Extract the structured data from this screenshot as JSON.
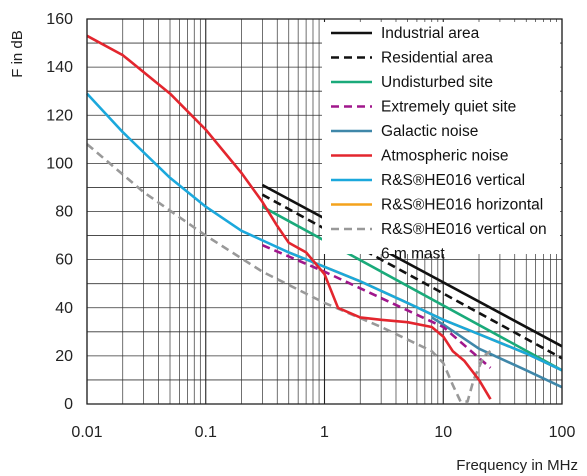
{
  "chart_data": {
    "type": "line",
    "xlabel": "Frequency in MHz",
    "ylabel": "F in dB",
    "x_scale": "log",
    "xlim": [
      0.01,
      100
    ],
    "ylim": [
      0,
      160
    ],
    "x_ticks": [
      {
        "value": 0.01,
        "label": "0.01"
      },
      {
        "value": 0.1,
        "label": "0.1"
      },
      {
        "value": 1,
        "label": "1"
      },
      {
        "value": 10,
        "label": "10"
      },
      {
        "value": 100,
        "label": "100"
      }
    ],
    "y_ticks": [
      {
        "value": 0,
        "label": "0"
      },
      {
        "value": 20,
        "label": "20"
      },
      {
        "value": 40,
        "label": "40"
      },
      {
        "value": 60,
        "label": "60"
      },
      {
        "value": 80,
        "label": "80"
      },
      {
        "value": 100,
        "label": "100"
      },
      {
        "value": 120,
        "label": "120"
      },
      {
        "value": 140,
        "label": "140"
      },
      {
        "value": 160,
        "label": "160"
      }
    ],
    "grid": true,
    "legend_position": "top-right",
    "series": [
      {
        "name": "Industrial area",
        "color": "#111111",
        "dash": "solid",
        "x": [
          0.3,
          100
        ],
        "y": [
          91,
          24
        ]
      },
      {
        "name": "Residential area",
        "color": "#111111",
        "dash": "dashed",
        "x": [
          0.3,
          100
        ],
        "y": [
          87,
          19
        ]
      },
      {
        "name": "Undisturbed site",
        "color": "#1aaa7a",
        "dash": "solid",
        "x": [
          0.3,
          100
        ],
        "y": [
          82,
          14
        ]
      },
      {
        "name": "Extremely quiet site",
        "color": "#a0178c",
        "dash": "dashed",
        "x": [
          0.3,
          1,
          3,
          10,
          25
        ],
        "y": [
          66,
          55,
          44,
          32,
          15
        ]
      },
      {
        "name": "Galactic noise",
        "color": "#3f87a9",
        "dash": "solid",
        "x": [
          8,
          10,
          20,
          50,
          100
        ],
        "y": [
          36,
          33,
          23,
          14,
          7
        ]
      },
      {
        "name": "Atmospheric noise",
        "color": "#e3262e",
        "dash": "solid",
        "x": [
          0.01,
          0.02,
          0.05,
          0.1,
          0.2,
          0.3,
          0.4,
          0.5,
          0.7,
          1,
          1.3,
          2,
          3,
          5,
          8,
          10,
          12,
          15,
          20,
          25
        ],
        "y": [
          153,
          145,
          129,
          114,
          96,
          84,
          74,
          67,
          63,
          54,
          40,
          36,
          35,
          34,
          32,
          28,
          22,
          18,
          10,
          2
        ]
      },
      {
        "name": "R&S®HE016 vertical",
        "color": "#1ba8dc",
        "dash": "solid",
        "x": [
          0.01,
          0.02,
          0.05,
          0.1,
          0.2,
          0.5,
          1,
          2,
          5,
          10,
          20,
          50,
          100
        ],
        "y": [
          129,
          113,
          94,
          82,
          72,
          63,
          57,
          51,
          42,
          35,
          29,
          21,
          14
        ]
      },
      {
        "name": "R&S®HE016 horizontal",
        "color": "#f4a21c",
        "dash": "solid",
        "x": [
          0.5,
          1,
          2,
          5,
          10,
          20,
          50,
          100
        ],
        "y": [
          63,
          57,
          51,
          42,
          35,
          29,
          21,
          14
        ]
      },
      {
        "name": "R&S®HE016 vertical on 6 m mast",
        "color": "#999999",
        "dash": "dashed",
        "x": [
          0.01,
          0.03,
          0.1,
          0.3,
          1,
          3,
          8,
          10,
          12,
          14,
          16,
          18,
          22,
          25
        ],
        "y": [
          108,
          88,
          70,
          55,
          42,
          32,
          22,
          17,
          8,
          1,
          1,
          10,
          20,
          22
        ]
      }
    ],
    "legend_lines": [
      [
        "Industrial area"
      ],
      [
        "Residential area"
      ],
      [
        "Undisturbed site"
      ],
      [
        "Extremely quiet site"
      ],
      [
        "Galactic noise"
      ],
      [
        "Atmospheric noise"
      ],
      [
        "R&S®HE016 vertical"
      ],
      [
        "R&S®HE016 horizontal"
      ],
      [
        "R&S®HE016 vertical on",
        "6 m mast"
      ]
    ]
  }
}
